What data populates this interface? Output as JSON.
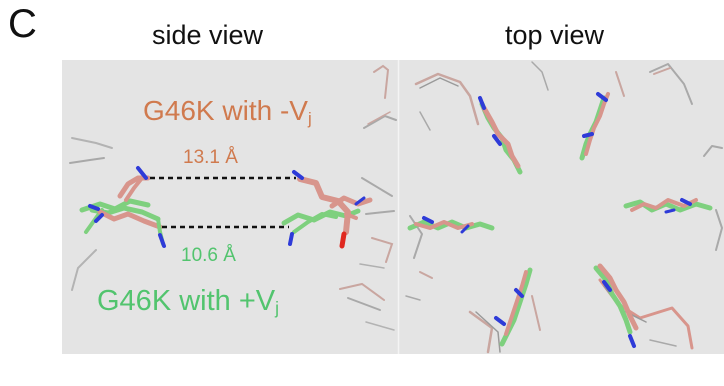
{
  "panel_letter": "C",
  "side_view": {
    "title": "side view",
    "negative_label": {
      "text": "G46K with -V",
      "subscript": "j"
    },
    "positive_label": {
      "text": "G46K with +V",
      "subscript": "j"
    },
    "distance_top": "13.1 Å",
    "distance_bottom": "10.6 Å"
  },
  "top_view": {
    "title": "top view"
  },
  "colors": {
    "panel_background": "#e4e4e4",
    "negative_vj": "#d8958c",
    "negative_vj_text": "#d07a4e",
    "positive_vj": "#7ed07e",
    "positive_vj_text": "#52c46e",
    "nitrogen": "#2e3bd8",
    "oxygen": "#e0281f",
    "backbone": "#b8b8b8"
  }
}
